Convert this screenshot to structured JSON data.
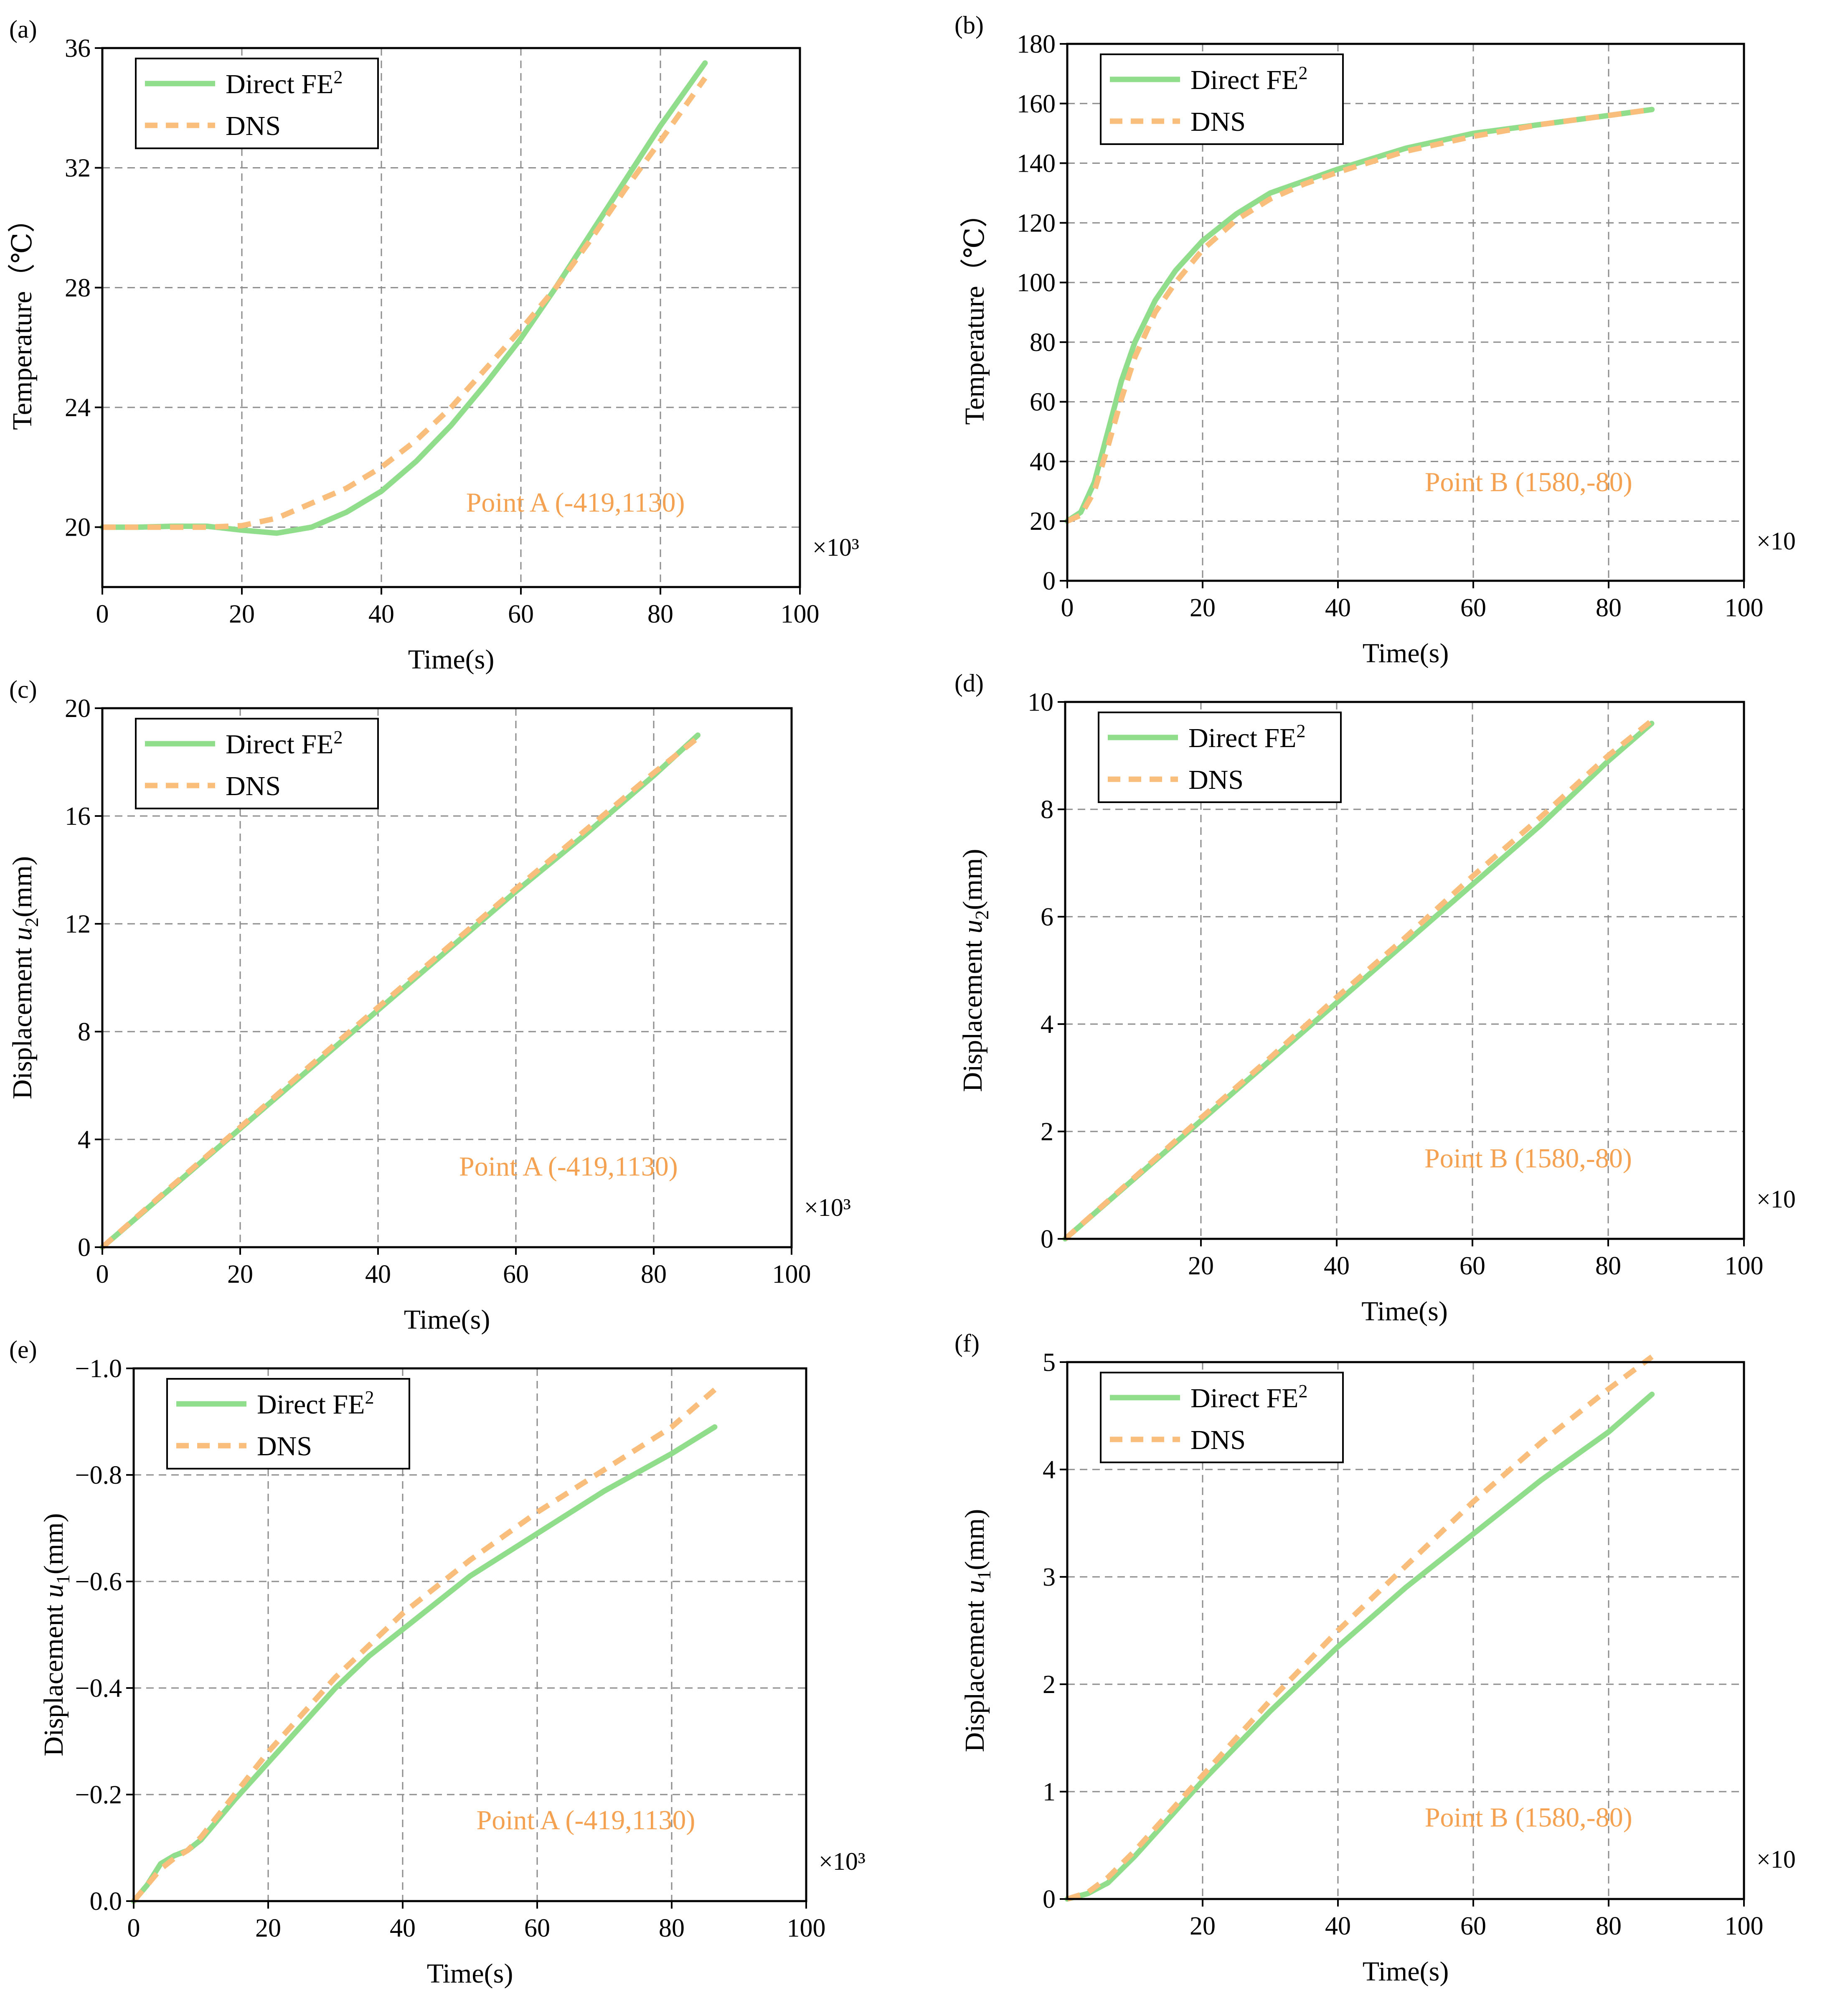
{
  "chart_data": [
    {
      "type": "line",
      "panel": "(a)",
      "xlabel": "Time(s)",
      "ylabel": "Temperature（℃）",
      "xlim": [
        0,
        100
      ],
      "ylim": [
        18,
        36
      ],
      "xticks": [
        0,
        20,
        40,
        60,
        80,
        100
      ],
      "xtick_labels": [
        "0",
        "20",
        "40",
        "60",
        "80",
        "100"
      ],
      "yticks": [
        20,
        24,
        28,
        32,
        36
      ],
      "ytick_labels": [
        "20",
        "24",
        "28",
        "32",
        "36"
      ],
      "grid": true,
      "legend_position": "top-left",
      "annotation": "Point A (-419,1130)",
      "x_multiplier": "×10³",
      "series": [
        {
          "name": "Direct FE",
          "sup": "2",
          "style": "solid",
          "color": "#90dd8c",
          "x": [
            0,
            5,
            10,
            15,
            20,
            25,
            30,
            35,
            40,
            45,
            50,
            55,
            60,
            65,
            70,
            75,
            80,
            86.4
          ],
          "y": [
            20,
            20,
            20.03,
            20.03,
            19.9,
            19.8,
            20.0,
            20.5,
            21.2,
            22.2,
            23.4,
            24.8,
            26.3,
            28.0,
            29.8,
            31.6,
            33.4,
            35.5
          ]
        },
        {
          "name": "DNS",
          "style": "dashed",
          "color": "#f9bd7c",
          "x": [
            0,
            5,
            10,
            15,
            20,
            25,
            30,
            35,
            40,
            45,
            50,
            55,
            60,
            65,
            70,
            75,
            80,
            86.4
          ],
          "y": [
            20,
            20,
            20,
            20,
            20.05,
            20.3,
            20.8,
            21.3,
            22.0,
            22.9,
            24.0,
            25.3,
            26.6,
            28.0,
            29.6,
            31.3,
            32.9,
            35.0
          ]
        }
      ]
    },
    {
      "type": "line",
      "panel": "(b)",
      "xlabel": "Time(s)",
      "ylabel": "Temperature（℃）",
      "xlim": [
        0,
        100
      ],
      "ylim": [
        0,
        180
      ],
      "xticks": [
        0,
        20,
        40,
        60,
        80,
        100
      ],
      "xtick_labels": [
        "0",
        "20",
        "40",
        "60",
        "80",
        "100"
      ],
      "yticks": [
        0,
        20,
        40,
        60,
        80,
        100,
        120,
        140,
        160,
        180
      ],
      "ytick_labels": [
        "0",
        "20",
        "40",
        "60",
        "80",
        "100",
        "120",
        "140",
        "160",
        "180"
      ],
      "grid": true,
      "legend_position": "top-left",
      "annotation": "Point B (1580,-80)",
      "x_multiplier": "×10",
      "series": [
        {
          "name": "Direct FE",
          "sup": "2",
          "style": "solid",
          "color": "#90dd8c",
          "x": [
            0,
            2,
            4,
            6,
            8,
            10,
            13,
            16,
            20,
            25,
            30,
            35,
            40,
            50,
            60,
            70,
            80,
            86.4
          ],
          "y": [
            20,
            23,
            33,
            50,
            67,
            80,
            94,
            104,
            114,
            123,
            130,
            134,
            138,
            145,
            150,
            153,
            156,
            158
          ]
        },
        {
          "name": "DNS",
          "style": "dashed",
          "color": "#f9bd7c",
          "x": [
            0,
            2,
            4,
            6,
            8,
            10,
            13,
            16,
            20,
            25,
            30,
            35,
            40,
            50,
            60,
            70,
            80,
            86.4
          ],
          "y": [
            20,
            22,
            30,
            45,
            61,
            75,
            90,
            100,
            111,
            121,
            128,
            133,
            137,
            144,
            149,
            153,
            156,
            158
          ]
        }
      ]
    },
    {
      "type": "line",
      "panel": "(c)",
      "xlabel": "Time(s)",
      "ylabel": "Displacement u2(mm)",
      "xlim": [
        0,
        100
      ],
      "ylim": [
        0,
        20
      ],
      "xticks": [
        0,
        20,
        40,
        60,
        80,
        100
      ],
      "xtick_labels": [
        "0",
        "20",
        "40",
        "60",
        "80",
        "100"
      ],
      "yticks": [
        0,
        4,
        8,
        12,
        16,
        20
      ],
      "ytick_labels": [
        "0",
        "4",
        "8",
        "12",
        "16",
        "20"
      ],
      "grid": true,
      "legend_position": "top-left",
      "annotation": "Point A (-419,1130)",
      "x_multiplier": "×10³",
      "series": [
        {
          "name": "Direct FE",
          "sup": "2",
          "style": "solid",
          "color": "#90dd8c",
          "x": [
            0,
            10,
            20,
            30,
            40,
            50,
            60,
            70,
            80,
            86.4
          ],
          "y": [
            0,
            2.2,
            4.4,
            6.6,
            8.8,
            11.0,
            13.2,
            15.3,
            17.5,
            19.0
          ]
        },
        {
          "name": "DNS",
          "style": "dashed",
          "color": "#f9bd7c",
          "x": [
            0,
            10,
            20,
            30,
            40,
            50,
            60,
            70,
            80,
            86.4
          ],
          "y": [
            0,
            2.25,
            4.45,
            6.7,
            8.9,
            11.1,
            13.3,
            15.45,
            17.6,
            18.9
          ]
        }
      ]
    },
    {
      "type": "line",
      "panel": "(d)",
      "xlabel": "Time(s)",
      "ylabel": "Displacement u2(mm)",
      "xlim": [
        0,
        100
      ],
      "ylim": [
        0,
        10
      ],
      "xticks": [
        20,
        40,
        60,
        80,
        100
      ],
      "xtick_labels": [
        "20",
        "40",
        "60",
        "80",
        "100"
      ],
      "yticks": [
        0,
        2,
        4,
        6,
        8,
        10
      ],
      "ytick_labels": [
        "0",
        "2",
        "4",
        "6",
        "8",
        "10"
      ],
      "grid": true,
      "legend_position": "top-left",
      "annotation": "Point B (1580,-80)",
      "x_multiplier": "×10",
      "series": [
        {
          "name": "Direct FE",
          "sup": "2",
          "style": "solid",
          "color": "#90dd8c",
          "x": [
            0,
            10,
            20,
            30,
            40,
            50,
            60,
            70,
            80,
            86.4
          ],
          "y": [
            0,
            1.1,
            2.2,
            3.3,
            4.4,
            5.5,
            6.6,
            7.7,
            8.9,
            9.6
          ]
        },
        {
          "name": "DNS",
          "style": "dashed",
          "color": "#f9bd7c",
          "x": [
            0,
            10,
            20,
            30,
            40,
            50,
            60,
            70,
            80,
            86.4
          ],
          "y": [
            0,
            1.12,
            2.25,
            3.35,
            4.5,
            5.6,
            6.75,
            7.85,
            9.0,
            9.65
          ]
        }
      ]
    },
    {
      "type": "line",
      "panel": "(e)",
      "xlabel": "Time(s)",
      "ylabel": "Displacement u1(mm)",
      "xlim": [
        0,
        100
      ],
      "ylim": [
        0,
        -1.0
      ],
      "xticks": [
        0,
        20,
        40,
        60,
        80,
        100
      ],
      "xtick_labels": [
        "0",
        "20",
        "40",
        "60",
        "80",
        "100"
      ],
      "yticks": [
        0,
        -0.2,
        -0.4,
        -0.6,
        -0.8,
        -1.0
      ],
      "ytick_labels": [
        "0.0",
        "−0.2",
        "−0.4",
        "−0.6",
        "−0.8",
        "−1.0"
      ],
      "grid": true,
      "legend_position": "top-left",
      "annotation": "Point A (-419,1130)",
      "x_multiplier": "×10³",
      "series": [
        {
          "name": "Direct FE",
          "sup": "2",
          "style": "solid",
          "color": "#90dd8c",
          "x": [
            0,
            2,
            4,
            6,
            8,
            10,
            15,
            20,
            25,
            30,
            35,
            40,
            50,
            60,
            70,
            80,
            86.4
          ],
          "y": [
            0,
            -0.03,
            -0.07,
            -0.085,
            -0.095,
            -0.115,
            -0.19,
            -0.26,
            -0.33,
            -0.4,
            -0.46,
            -0.51,
            -0.61,
            -0.69,
            -0.77,
            -0.84,
            -0.89
          ]
        },
        {
          "name": "DNS",
          "style": "dashed",
          "color": "#f9bd7c",
          "x": [
            0,
            2,
            4,
            6,
            8,
            10,
            15,
            20,
            25,
            30,
            35,
            40,
            50,
            60,
            70,
            80,
            86.4
          ],
          "y": [
            0,
            -0.03,
            -0.06,
            -0.08,
            -0.095,
            -0.12,
            -0.2,
            -0.28,
            -0.35,
            -0.42,
            -0.48,
            -0.54,
            -0.64,
            -0.73,
            -0.81,
            -0.89,
            -0.96
          ]
        }
      ]
    },
    {
      "type": "line",
      "panel": "(f)",
      "xlabel": "Time(s)",
      "ylabel": "Displacement u1(mm)",
      "xlim": [
        0,
        100
      ],
      "ylim": [
        0,
        5
      ],
      "xticks": [
        20,
        40,
        60,
        80,
        100
      ],
      "xtick_labels": [
        "20",
        "40",
        "60",
        "80",
        "100"
      ],
      "yticks": [
        0,
        1,
        2,
        3,
        4,
        5
      ],
      "ytick_labels": [
        "0",
        "1",
        "2",
        "3",
        "4",
        "5"
      ],
      "grid": true,
      "legend_position": "top-left",
      "annotation": "Point B (1580,-80)",
      "x_multiplier": "×10",
      "series": [
        {
          "name": "Direct FE",
          "sup": "2",
          "style": "solid",
          "color": "#90dd8c",
          "x": [
            0,
            3,
            6,
            10,
            15,
            20,
            30,
            40,
            50,
            60,
            70,
            80,
            86.4
          ],
          "y": [
            0,
            0.05,
            0.15,
            0.4,
            0.75,
            1.1,
            1.75,
            2.35,
            2.9,
            3.4,
            3.9,
            4.35,
            4.7
          ]
        },
        {
          "name": "DNS",
          "style": "dashed",
          "color": "#f9bd7c",
          "x": [
            0,
            3,
            6,
            10,
            15,
            20,
            30,
            40,
            50,
            60,
            70,
            80,
            86.4
          ],
          "y": [
            0,
            0.06,
            0.2,
            0.45,
            0.8,
            1.15,
            1.85,
            2.5,
            3.1,
            3.7,
            4.25,
            4.75,
            5.05
          ]
        }
      ]
    }
  ]
}
